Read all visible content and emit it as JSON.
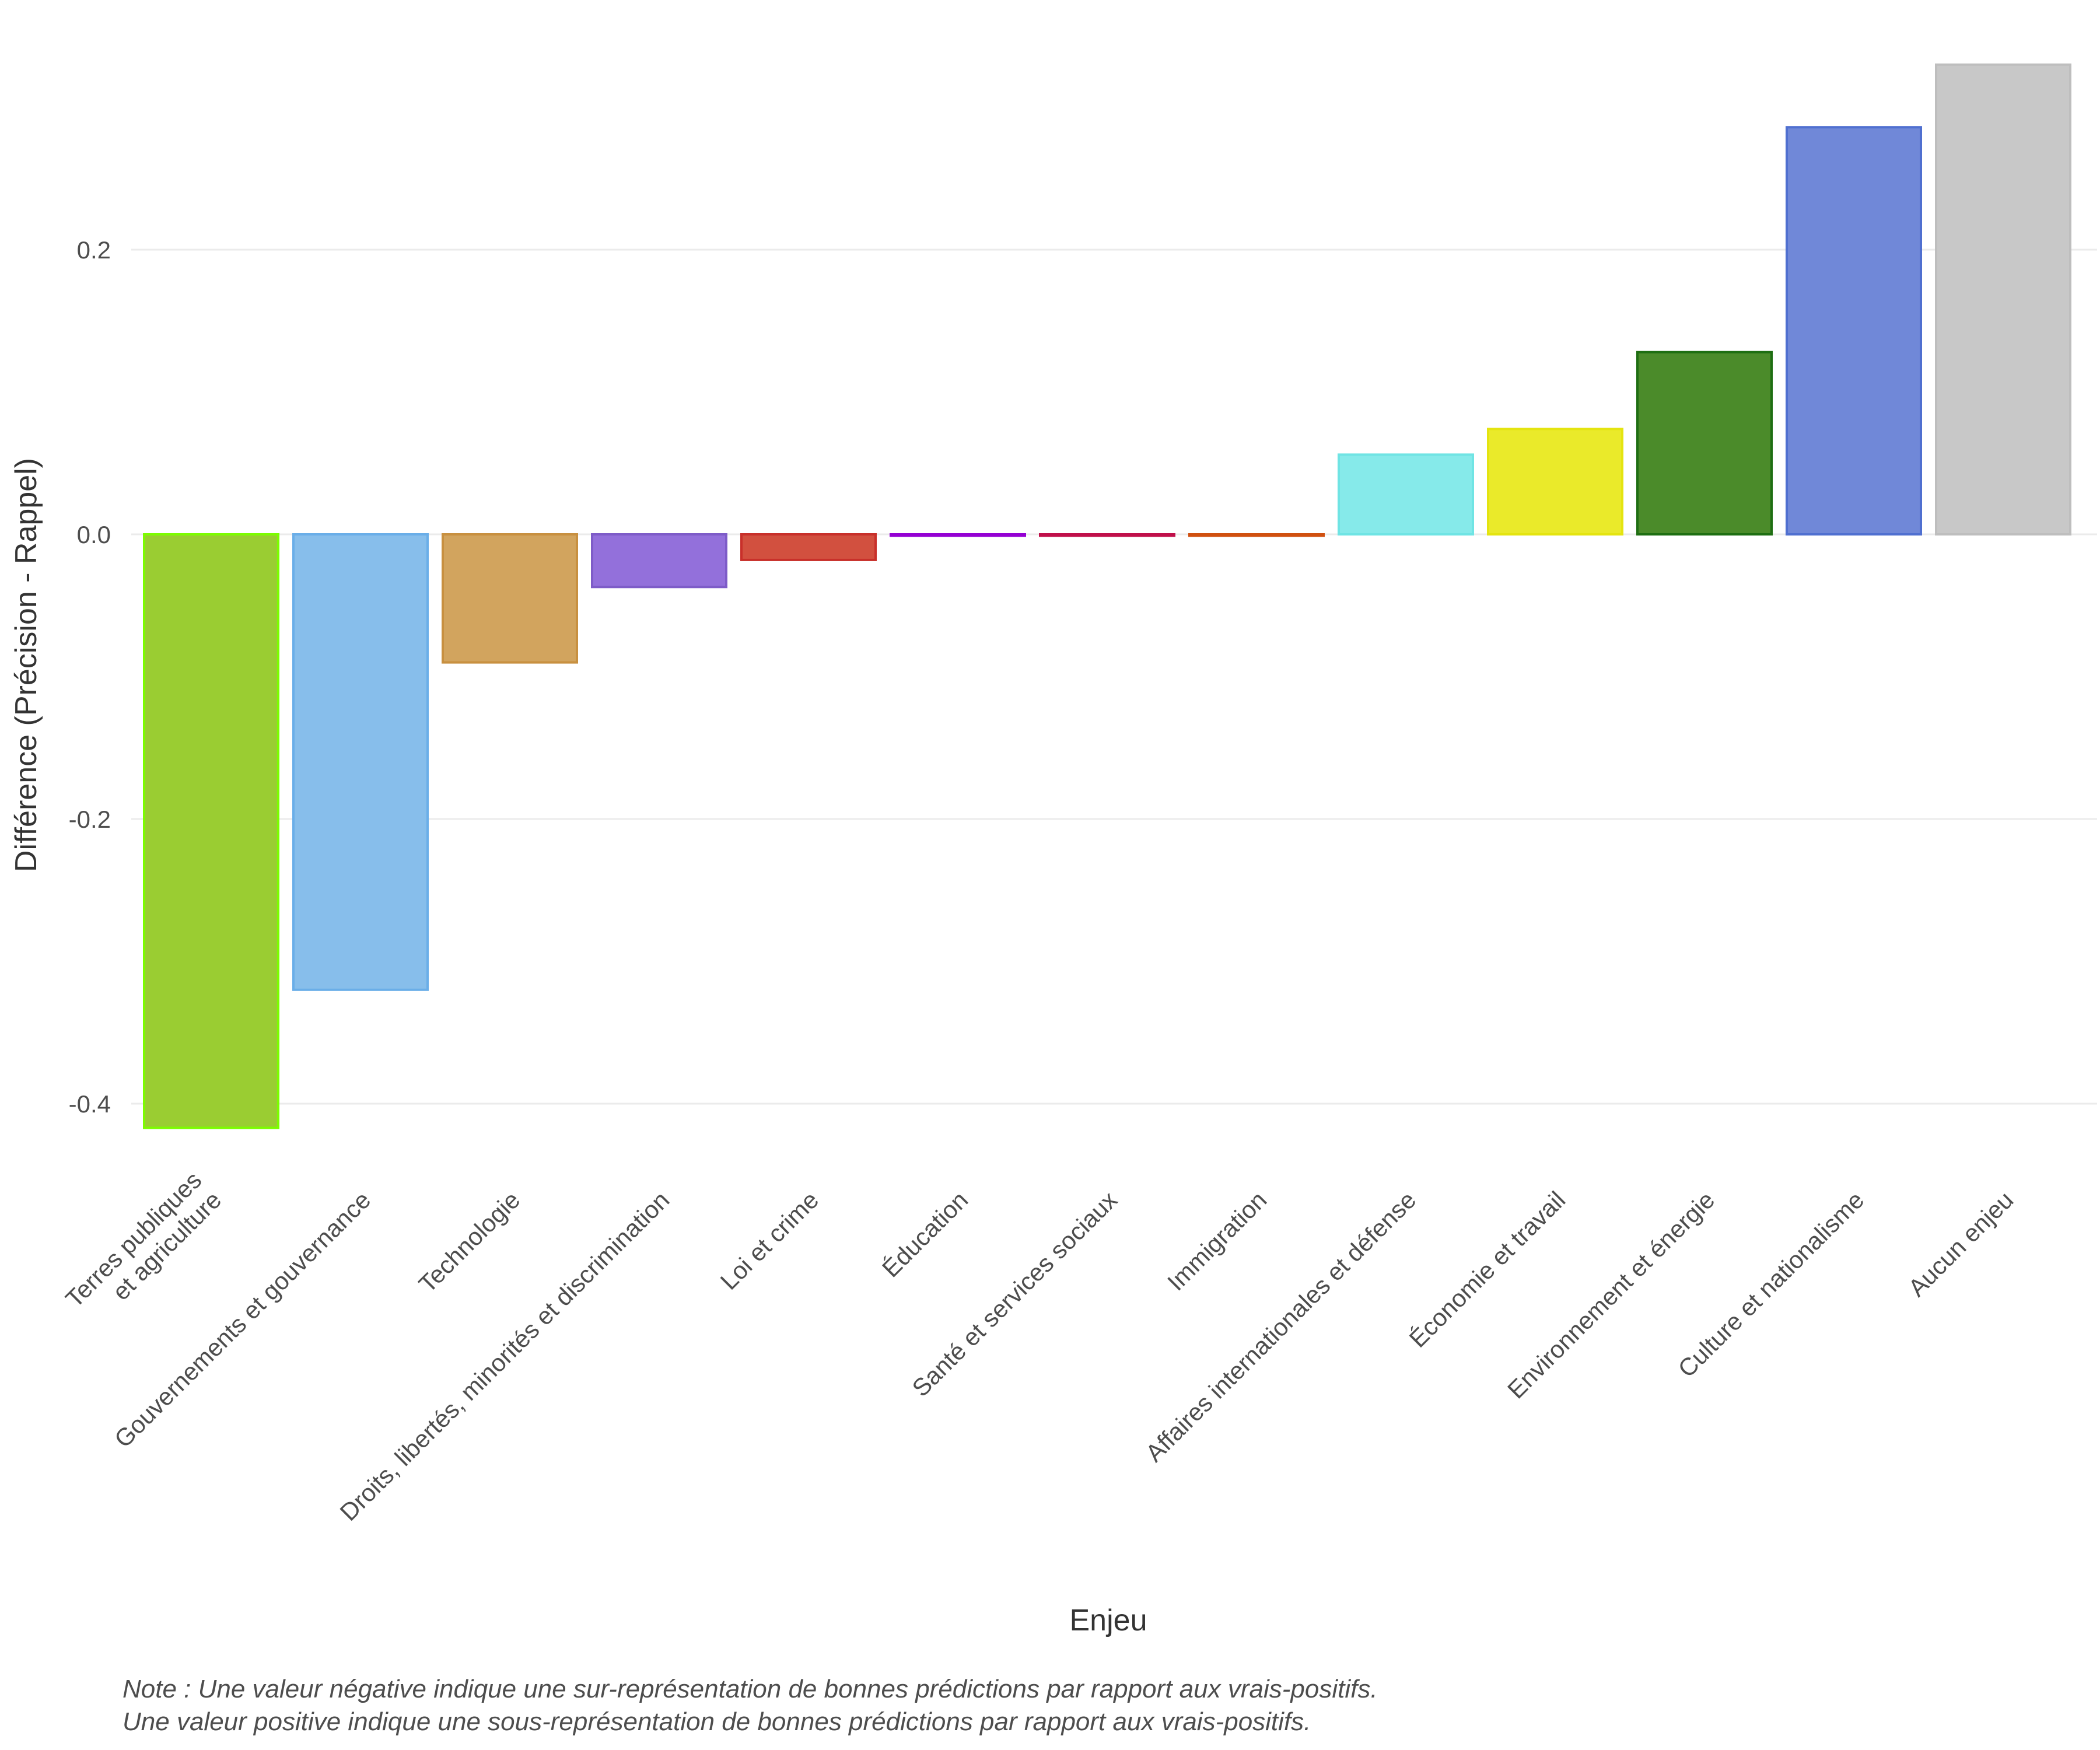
{
  "chart_data": {
    "type": "bar",
    "title": "",
    "xlabel": "Enjeu",
    "ylabel": "Différence (Précision - Rappel)",
    "ylim": [
      -0.43,
      0.34
    ],
    "yticks": [
      0.2,
      0.0,
      -0.2,
      -0.4
    ],
    "ytick_labels": [
      "0.2",
      "0.0",
      "-0.2",
      "-0.4"
    ],
    "grid": true,
    "categories": [
      "Terres publiques\net agriculture",
      "Gouvernements et gouvernance",
      "Technologie",
      "Droits, libertés, minorités et discrimination",
      "Loi et crime",
      "Éducation",
      "Santé et services sociaux",
      "Immigration",
      "Affaires internationales et défense",
      "Économie et travail",
      "Environnement et énergie",
      "Culture et nationalisme",
      "Aucun enjeu"
    ],
    "values": [
      -0.417,
      -0.32,
      -0.09,
      -0.037,
      -0.018,
      -0.001,
      -0.001,
      -0.001,
      0.056,
      0.074,
      0.128,
      0.286,
      0.33
    ],
    "colors": [
      "#9ACD32",
      "#87BEEB",
      "#D2A45E",
      "#9370DB",
      "#D2503F",
      "#A020F0",
      "#C71585",
      "#D2691E",
      "#86EAEA",
      "#EAEA2A",
      "#4B8B2A",
      "#7088D8",
      "#C8C8C8"
    ],
    "border_colors": [
      "#7CFC00",
      "#6AAEE8",
      "#C89040",
      "#7E5CC8",
      "#C8302A",
      "#9400D3",
      "#C0104A",
      "#D05010",
      "#70E4E4",
      "#E4E410",
      "#1E6E12",
      "#5070D0",
      "#BEBEBE"
    ]
  },
  "note": {
    "line1": "Note : Une valeur négative indique une sur-représentation de bonnes prédictions par rapport aux vrais-positifs.",
    "line2": "Une valeur positive indique une sous-représentation de bonnes prédictions par rapport aux vrais-positifs."
  }
}
